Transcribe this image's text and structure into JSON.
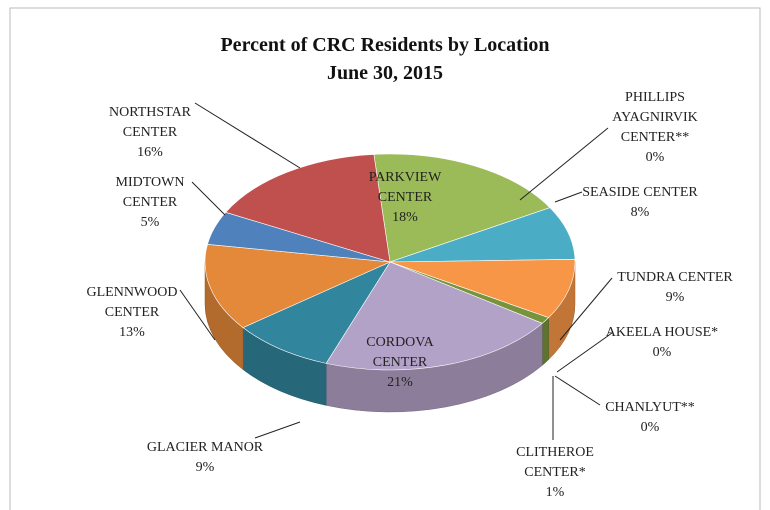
{
  "chart_data": {
    "type": "pie3d",
    "title": "Percent of CRC Residents by Location",
    "subtitle": "June 30, 2015",
    "categories": [
      "PARKVIEW CENTER",
      "PHILLIPS AYAGNIRVIK CENTER**",
      "SEASIDE CENTER",
      "TUNDRA CENTER",
      "AKEELA HOUSE*",
      "CHANLYUT**",
      "CLITHEROE CENTER*",
      "CORDOVA CENTER",
      "GLACIER MANOR",
      "GLENNWOOD CENTER",
      "MIDTOWN CENTER",
      "NORTHSTAR CENTER"
    ],
    "values": [
      18,
      0,
      8,
      9,
      0,
      0,
      1,
      21,
      9,
      13,
      5,
      16
    ],
    "value_labels": [
      "18%",
      "0%",
      "8%",
      "9%",
      "0%",
      "0%",
      "1%",
      "21%",
      "9%",
      "13%",
      "5%",
      "16%"
    ],
    "colors": [
      "#9bbb59",
      "#8064a2",
      "#4bacc6",
      "#f79646",
      "#2c4d75",
      "#772c2a",
      "#77933c",
      "#b3a2c7",
      "#31859c",
      "#e4883a",
      "#4f81bd",
      "#c0504d"
    ]
  }
}
